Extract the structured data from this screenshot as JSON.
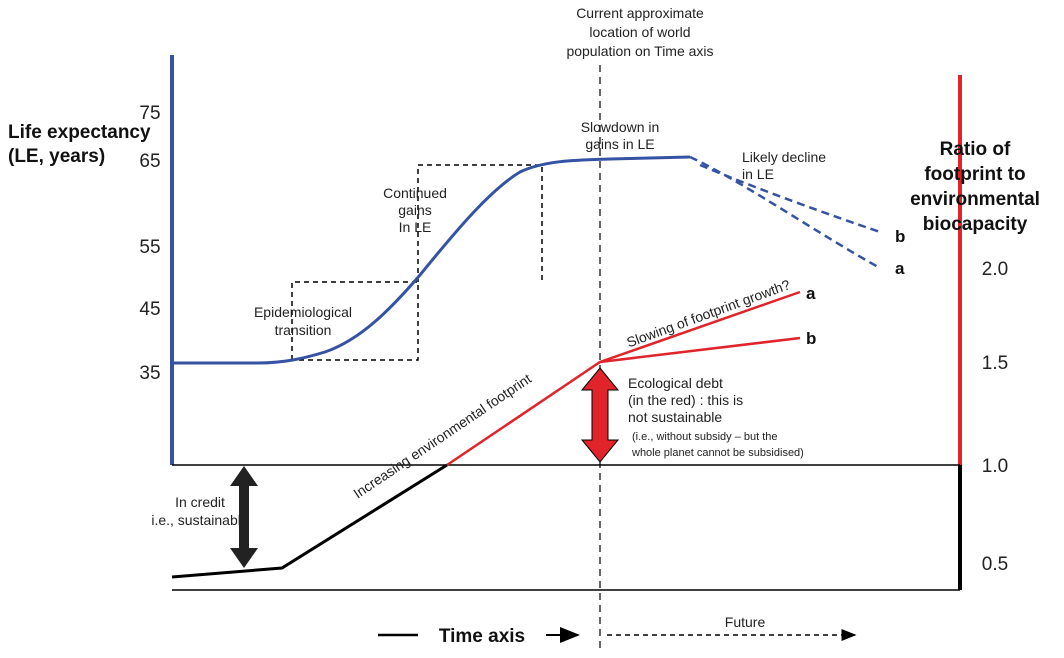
{
  "left_axis": {
    "title": [
      "Life expectancy",
      "(LE, years)"
    ],
    "ticks": [
      "75",
      "65",
      "55",
      "45",
      "35"
    ]
  },
  "right_axis": {
    "title": [
      "Ratio of",
      "footprint to",
      "environmental",
      "biocapacity"
    ],
    "ticks": [
      "2.0",
      "1.5",
      "1.0",
      "0.5"
    ]
  },
  "top_note": [
    "Current approximate",
    "location of world",
    "population on Time axis"
  ],
  "annotations": {
    "slowdown": [
      "Slowdown in",
      "gains in LE"
    ],
    "decline": [
      "Likely decline",
      "in LE"
    ],
    "continued": [
      "Continued",
      "gains",
      "In LE"
    ],
    "epidemiological": [
      "Epidemiological",
      "transition"
    ],
    "increasing": "Increasing environmental footprint",
    "slowing": "Slowing of footprint growth?",
    "debt": [
      "Ecological debt",
      "(in the red) : this is",
      "not sustainable"
    ],
    "debt_note": [
      "(i.e., without subsidy – but the",
      "whole planet cannot be subsidised)"
    ],
    "credit": [
      "In credit",
      "i.e., sustainable"
    ],
    "le_b": "b",
    "le_a": "a",
    "fp_a": "a",
    "fp_b": "b"
  },
  "time_axis": {
    "label": "Time axis",
    "future": "Future"
  }
}
